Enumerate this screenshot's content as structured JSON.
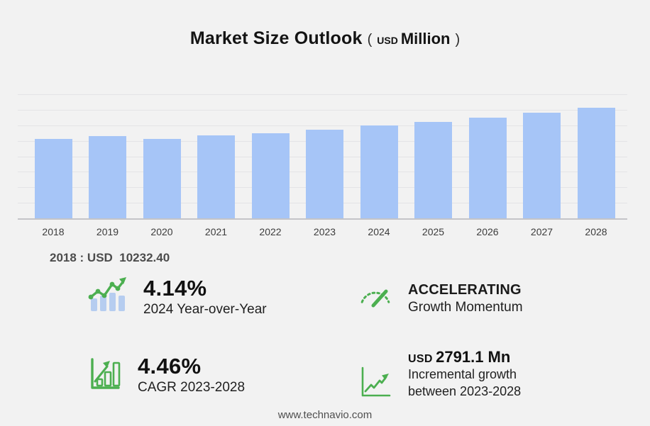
{
  "title": {
    "main": "Market Size Outlook",
    "paren_open": "(",
    "unit_small": "USD",
    "unit_big": "Million",
    "paren_close": ")"
  },
  "chart_data": {
    "type": "bar",
    "title": "Market Size Outlook (USD Million)",
    "xlabel": "",
    "ylabel": "",
    "categories": [
      "2018",
      "2019",
      "2020",
      "2021",
      "2022",
      "2023",
      "2024",
      "2025",
      "2026",
      "2027",
      "2028"
    ],
    "values": [
      10232.4,
      10640,
      10270,
      10730,
      11000,
      11457.7,
      11932.1,
      12455,
      13010,
      13640,
      14248.8
    ],
    "ylim": [
      0,
      16000
    ],
    "gridline_step": 2000,
    "grid": true,
    "legend": "none",
    "y_ticks_shown": false,
    "annotation": "2018 : USD  10232.40"
  },
  "stats": {
    "yoy": {
      "icon": "bar-trend-icon",
      "value": "4.14%",
      "label": "2024 Year-over-Year"
    },
    "momentum": {
      "icon": "gauge-icon",
      "value": "ACCELERATING",
      "label": "Growth Momentum"
    },
    "cagr": {
      "icon": "growth-box-icon",
      "value": "4.46%",
      "label": "CAGR 2023-2028"
    },
    "incremental": {
      "icon": "line-chart-icon",
      "value_prefix": "USD",
      "value": "2791.1 Mn",
      "label_line1": "Incremental growth",
      "label_line2": "between 2023-2028"
    }
  },
  "footer": {
    "url": "www.technavio.com"
  },
  "colors": {
    "background": "#f2f2f2",
    "bar": "#a6c5f7",
    "gridline": "#e4e4e6",
    "axis": "#c4c4c8",
    "green": "#4caf50",
    "icon_blue": "#b6cdf0",
    "text_dark": "#111111",
    "text_gray": "#4c4c4c"
  }
}
